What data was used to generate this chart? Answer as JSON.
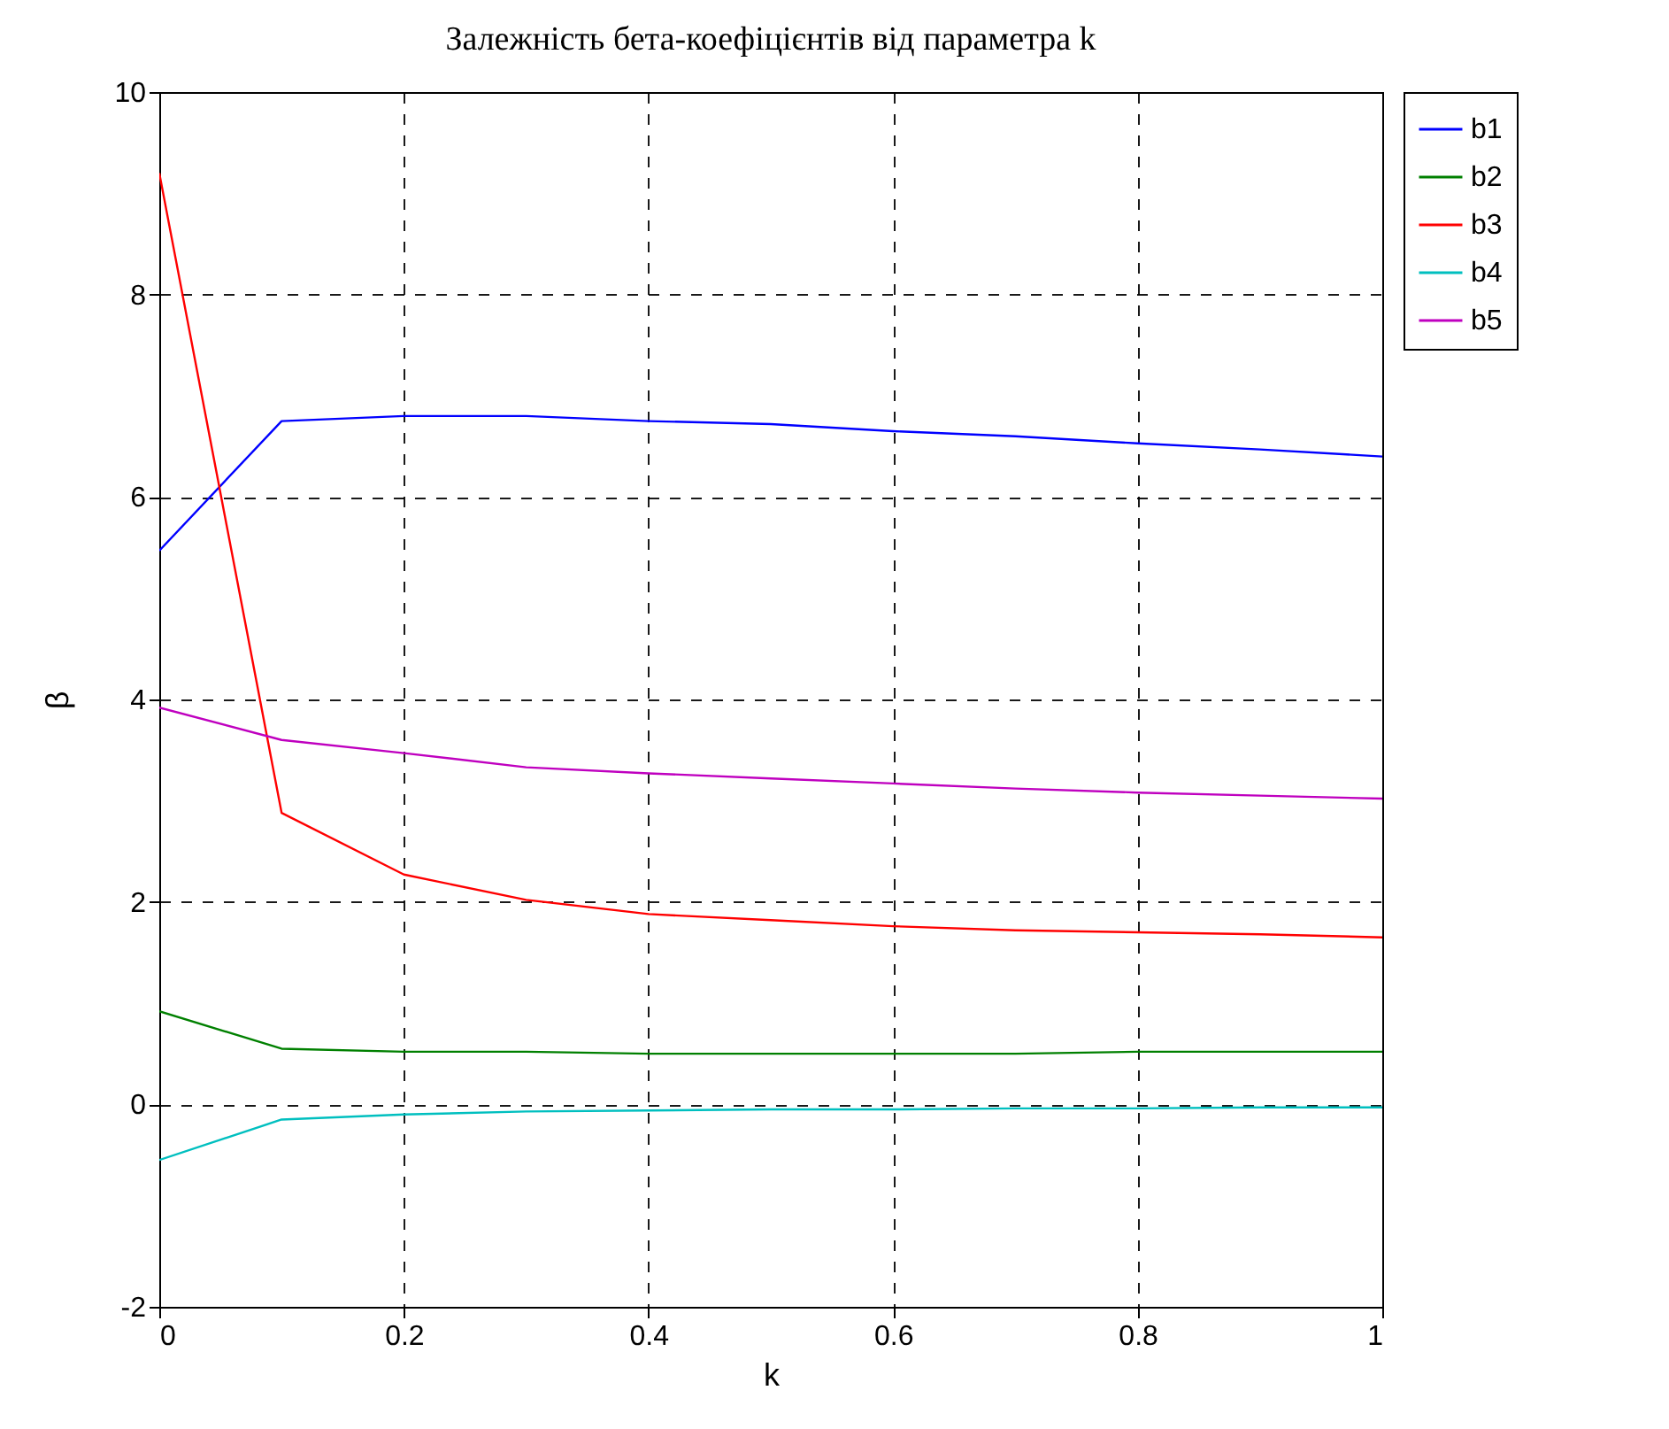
{
  "chart_data": {
    "type": "line",
    "title": "Залежність бета-коефіцієнтів від параметра k",
    "xlabel": "k",
    "ylabel": "β",
    "x": [
      0,
      0.1,
      0.2,
      0.3,
      0.4,
      0.5,
      0.6,
      0.7,
      0.8,
      0.9,
      1
    ],
    "series": [
      {
        "name": "b1",
        "color": "#0000ff",
        "values": [
          5.47,
          6.75,
          6.8,
          6.8,
          6.75,
          6.72,
          6.65,
          6.6,
          6.53,
          6.47,
          6.4
        ]
      },
      {
        "name": "b2",
        "color": "#008000",
        "values": [
          0.92,
          0.55,
          0.52,
          0.52,
          0.5,
          0.5,
          0.5,
          0.5,
          0.52,
          0.52,
          0.52
        ]
      },
      {
        "name": "b3",
        "color": "#ff0000",
        "values": [
          9.2,
          2.88,
          2.27,
          2.02,
          1.88,
          1.82,
          1.76,
          1.72,
          1.7,
          1.68,
          1.65
        ]
      },
      {
        "name": "b4",
        "color": "#00bfbf",
        "values": [
          -0.55,
          -0.15,
          -0.1,
          -0.07,
          -0.06,
          -0.05,
          -0.05,
          -0.04,
          -0.04,
          -0.03,
          -0.03
        ]
      },
      {
        "name": "b5",
        "color": "#bf00bf",
        "values": [
          3.92,
          3.6,
          3.47,
          3.33,
          3.27,
          3.22,
          3.17,
          3.12,
          3.08,
          3.05,
          3.02
        ]
      }
    ],
    "xlim": [
      0,
      1
    ],
    "xticks": [
      0,
      0.2,
      0.4,
      0.6,
      0.8,
      1
    ],
    "ylim": [
      -2,
      10
    ],
    "yticks": [
      -2,
      0,
      2,
      4,
      6,
      8,
      10
    ],
    "grid": true,
    "legend": "top right",
    "marker": "none",
    "line_style": "solid"
  }
}
